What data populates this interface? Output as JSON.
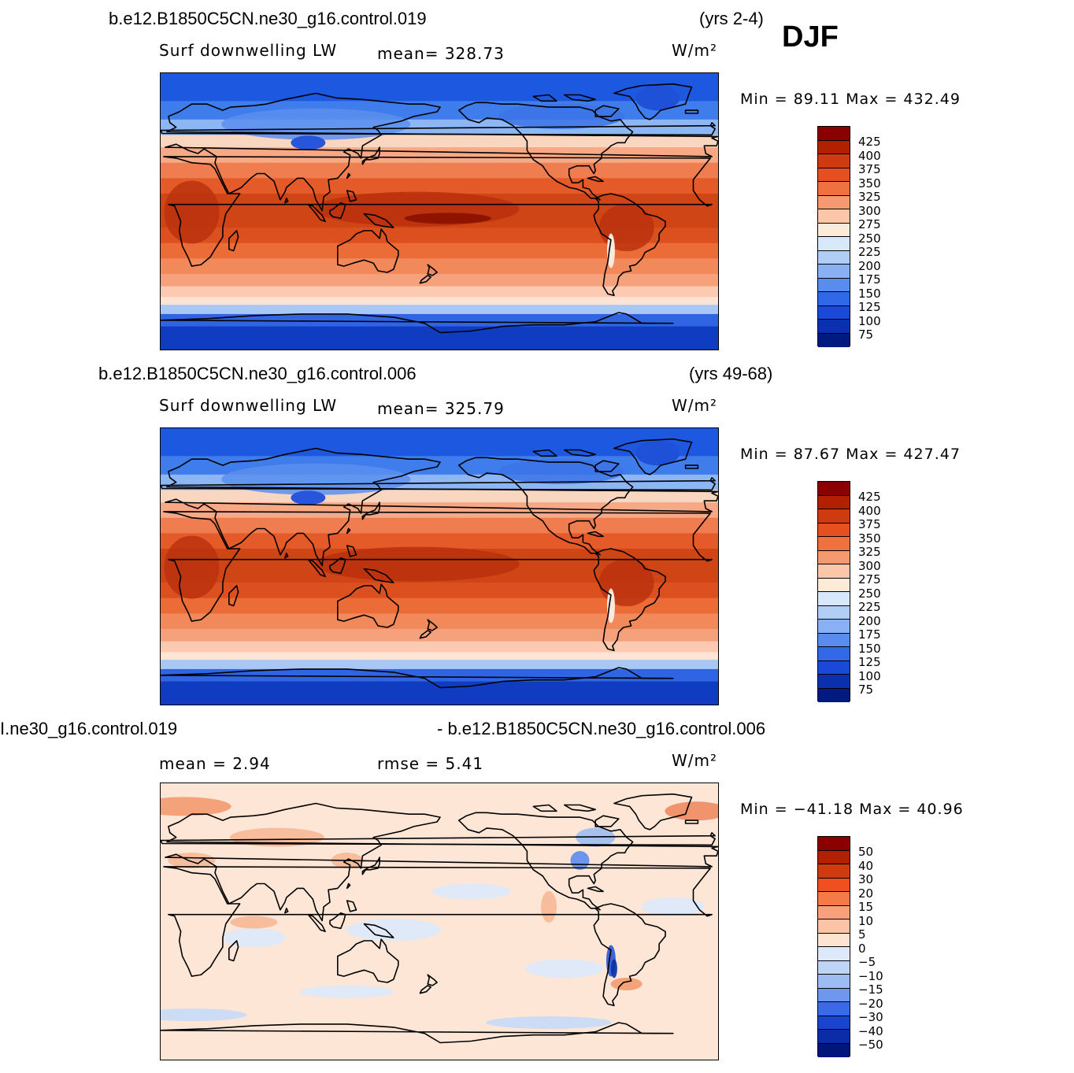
{
  "season": "DJF",
  "units": "W/m²",
  "panels": [
    {
      "case_title": "b.e12.B1850C5CN.ne30_g16.control.019",
      "years": "(yrs 2-4)",
      "left_label": "Surf downwelling LW",
      "center_label": "mean= 328.73",
      "minmax": "Min =  89.11 Max = 432.49",
      "colorbar": {
        "levels": [
          "425",
          "400",
          "375",
          "350",
          "325",
          "300",
          "275",
          "250",
          "225",
          "200",
          "175",
          "150",
          "125",
          "100",
          "75"
        ],
        "colors": [
          "#8b0000",
          "#b22000",
          "#d03a10",
          "#e65020",
          "#f07040",
          "#f59a70",
          "#fbc7a8",
          "#fdebd8",
          "#d8e8fb",
          "#b0cdf7",
          "#88b0f2",
          "#5a8cf0",
          "#3068e8",
          "#1a48d8",
          "#0a30b0",
          "#001a80"
        ]
      },
      "field_kind": "absolute"
    },
    {
      "case_title": "b.e12.B1850C5CN.ne30_g16.control.006",
      "years": "(yrs 49-68)",
      "left_label": "Surf downwelling LW",
      "center_label": "mean= 325.79",
      "minmax": "Min =  87.67 Max = 427.47",
      "colorbar": {
        "levels": [
          "425",
          "400",
          "375",
          "350",
          "325",
          "300",
          "275",
          "250",
          "225",
          "200",
          "175",
          "150",
          "125",
          "100",
          "75"
        ],
        "colors": [
          "#8b0000",
          "#b22000",
          "#d03a10",
          "#e65020",
          "#f07040",
          "#f59a70",
          "#fbc7a8",
          "#fdebd8",
          "#d8e8fb",
          "#b0cdf7",
          "#88b0f2",
          "#5a8cf0",
          "#3068e8",
          "#1a48d8",
          "#0a30b0",
          "#001a80"
        ]
      },
      "field_kind": "absolute"
    },
    {
      "case_title_left": "Ι.ne30_g16.control.019",
      "case_title_right": "- b.e12.B1850C5CN.ne30_g16.control.006",
      "left_label": "mean =    2.94",
      "center_label": "rmse =    5.41",
      "minmax": "Min = −41.18 Max =   40.96",
      "colorbar": {
        "levels": [
          "50",
          "40",
          "30",
          "20",
          "15",
          "10",
          "5",
          "0",
          "−5",
          "−10",
          "−15",
          "−20",
          "−30",
          "−40",
          "−50"
        ],
        "colors": [
          "#8b0000",
          "#b22000",
          "#d03a10",
          "#f05020",
          "#f57a48",
          "#f8a07a",
          "#fbc4a6",
          "#fde4d2",
          "#dde9fb",
          "#bfd5f7",
          "#9dbcf2",
          "#6f97ee",
          "#3a6ae6",
          "#1a44cf",
          "#0a2ca6",
          "#00167a"
        ]
      },
      "field_kind": "difference"
    }
  ]
}
